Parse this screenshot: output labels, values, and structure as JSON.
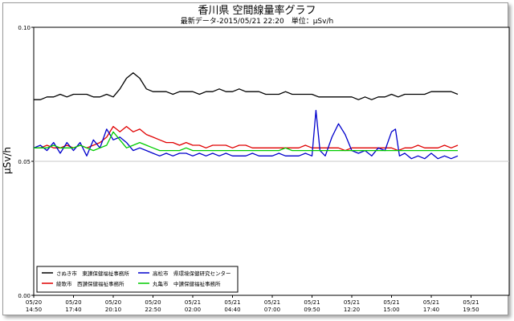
{
  "chart_data": {
    "type": "line",
    "title": "香川県 空間線量率グラフ",
    "subtitle": "最新データ-2015/05/21 22:20　単位：μSv/h",
    "ylabel": "μSv/h",
    "ylim": [
      0.0,
      0.1
    ],
    "yticks": [
      "0.00",
      "0.05",
      "0.10"
    ],
    "grid": true,
    "legend_position": "bottom-left",
    "x_range": [
      0,
      32.0
    ],
    "x_unit_note": "hours",
    "xticks": [
      {
        "x": 0,
        "date": "05/20",
        "time": "14:50"
      },
      {
        "x": 3,
        "date": "05/20",
        "time": "17:40"
      },
      {
        "x": 6,
        "date": "05/20",
        "time": "20:10"
      },
      {
        "x": 9,
        "date": "05/20",
        "time": "22:50"
      },
      {
        "x": 12,
        "date": "05/21",
        "time": "02:00"
      },
      {
        "x": 15,
        "date": "05/21",
        "time": "04:40"
      },
      {
        "x": 18,
        "date": "05/21",
        "time": "07:00"
      },
      {
        "x": 21,
        "date": "05/21",
        "time": "09:50"
      },
      {
        "x": 24,
        "date": "05/21",
        "time": "12:20"
      },
      {
        "x": 27,
        "date": "05/21",
        "time": "15:00"
      },
      {
        "x": 30,
        "date": "05/21",
        "time": "17:40"
      },
      {
        "x": 33,
        "date": "05/21",
        "time": "19:50"
      }
    ],
    "series": [
      {
        "name": "さぬき市　東讃保健福祉事務所",
        "color": "#000000",
        "x": [
          0,
          0.5,
          1,
          1.5,
          2,
          2.5,
          3,
          3.5,
          4,
          4.5,
          5,
          5.5,
          6,
          6.5,
          7,
          7.5,
          8,
          8.5,
          9,
          9.5,
          10,
          10.5,
          11,
          11.5,
          12,
          12.5,
          13,
          13.5,
          14,
          14.5,
          15,
          15.5,
          16,
          16.5,
          17,
          17.5,
          18,
          18.5,
          19,
          19.5,
          20,
          20.5,
          21,
          21.5,
          22,
          22.5,
          23,
          23.5,
          24,
          24.5,
          25,
          25.5,
          26,
          26.5,
          27,
          27.5,
          28,
          28.5,
          29,
          29.5,
          30,
          30.5,
          31,
          31.5,
          32
        ],
        "values": [
          0.073,
          0.073,
          0.074,
          0.074,
          0.075,
          0.074,
          0.075,
          0.075,
          0.075,
          0.074,
          0.074,
          0.075,
          0.074,
          0.077,
          0.081,
          0.083,
          0.081,
          0.077,
          0.076,
          0.076,
          0.076,
          0.075,
          0.076,
          0.076,
          0.076,
          0.075,
          0.076,
          0.076,
          0.077,
          0.076,
          0.076,
          0.077,
          0.076,
          0.076,
          0.076,
          0.075,
          0.075,
          0.075,
          0.076,
          0.075,
          0.075,
          0.075,
          0.075,
          0.074,
          0.074,
          0.074,
          0.074,
          0.074,
          0.074,
          0.073,
          0.074,
          0.073,
          0.074,
          0.074,
          0.075,
          0.074,
          0.075,
          0.075,
          0.075,
          0.075,
          0.076,
          0.076,
          0.076,
          0.076,
          0.075
        ]
      },
      {
        "name": "綾歌市　西讃保健福祉事務所",
        "color": "#e00000",
        "x": [
          0,
          0.5,
          1,
          1.5,
          2,
          2.5,
          3,
          3.5,
          4,
          4.5,
          5,
          5.5,
          6,
          6.5,
          7,
          7.5,
          8,
          8.5,
          9,
          9.5,
          10,
          10.5,
          11,
          11.5,
          12,
          12.5,
          13,
          13.5,
          14,
          14.5,
          15,
          15.5,
          16,
          16.5,
          17,
          17.5,
          18,
          18.5,
          19,
          19.5,
          20,
          20.5,
          21,
          21.5,
          22,
          22.5,
          23,
          23.5,
          24,
          24.5,
          25,
          25.5,
          26,
          26.5,
          27,
          27.5,
          28,
          28.5,
          29,
          29.5,
          30,
          30.5,
          31,
          31.5,
          32
        ],
        "values": [
          0.055,
          0.055,
          0.056,
          0.055,
          0.055,
          0.056,
          0.055,
          0.056,
          0.055,
          0.056,
          0.057,
          0.059,
          0.063,
          0.061,
          0.063,
          0.061,
          0.062,
          0.06,
          0.059,
          0.058,
          0.057,
          0.057,
          0.056,
          0.057,
          0.056,
          0.056,
          0.055,
          0.056,
          0.056,
          0.056,
          0.055,
          0.056,
          0.056,
          0.055,
          0.055,
          0.055,
          0.055,
          0.055,
          0.055,
          0.055,
          0.055,
          0.056,
          0.055,
          0.055,
          0.055,
          0.055,
          0.055,
          0.054,
          0.055,
          0.055,
          0.055,
          0.055,
          0.055,
          0.055,
          0.055,
          0.054,
          0.055,
          0.055,
          0.056,
          0.055,
          0.055,
          0.055,
          0.056,
          0.055,
          0.056
        ]
      },
      {
        "name": "高松市　県環境保健研究センター",
        "color": "#0000cc",
        "x": [
          0,
          0.5,
          1,
          1.5,
          2,
          2.5,
          3,
          3.5,
          4,
          4.5,
          5,
          5.5,
          6,
          6.5,
          7,
          7.5,
          8,
          8.5,
          9,
          9.5,
          10,
          10.5,
          11,
          11.5,
          12,
          12.5,
          13,
          13.5,
          14,
          14.5,
          15,
          15.5,
          16,
          16.5,
          17,
          17.5,
          18,
          18.5,
          19,
          19.5,
          20,
          20.5,
          21,
          21.3,
          21.6,
          22,
          22.5,
          23,
          23.5,
          24,
          24.5,
          25,
          25.5,
          26,
          26.5,
          27,
          27.3,
          27.6,
          28,
          28.5,
          29,
          29.5,
          30,
          30.5,
          31,
          31.5,
          32
        ],
        "values": [
          0.055,
          0.056,
          0.054,
          0.057,
          0.053,
          0.057,
          0.054,
          0.057,
          0.052,
          0.058,
          0.055,
          0.062,
          0.058,
          0.059,
          0.057,
          0.054,
          0.055,
          0.054,
          0.053,
          0.052,
          0.053,
          0.052,
          0.053,
          0.053,
          0.052,
          0.053,
          0.052,
          0.053,
          0.052,
          0.053,
          0.052,
          0.052,
          0.052,
          0.053,
          0.052,
          0.052,
          0.052,
          0.053,
          0.052,
          0.052,
          0.052,
          0.053,
          0.052,
          0.069,
          0.054,
          0.052,
          0.059,
          0.064,
          0.06,
          0.054,
          0.053,
          0.054,
          0.052,
          0.055,
          0.054,
          0.061,
          0.062,
          0.052,
          0.053,
          0.051,
          0.052,
          0.051,
          0.053,
          0.051,
          0.052,
          0.051,
          0.052
        ]
      },
      {
        "name": "丸亀市　中讃保健福祉事務所",
        "color": "#00cc00",
        "x": [
          0,
          0.5,
          1,
          1.5,
          2,
          2.5,
          3,
          3.5,
          4,
          4.5,
          5,
          5.5,
          6,
          6.5,
          7,
          7.5,
          8,
          8.5,
          9,
          9.5,
          10,
          10.5,
          11,
          11.5,
          12,
          12.5,
          13,
          13.5,
          14,
          14.5,
          15,
          15.5,
          16,
          16.5,
          17,
          17.5,
          18,
          18.5,
          19,
          19.5,
          20,
          20.5,
          21,
          21.5,
          22,
          22.5,
          23,
          23.5,
          24,
          24.5,
          25,
          25.5,
          26,
          26.5,
          27,
          27.5,
          28,
          28.5,
          29,
          29.5,
          30,
          30.5,
          31,
          31.5,
          32
        ],
        "values": [
          0.055,
          0.055,
          0.055,
          0.056,
          0.055,
          0.055,
          0.055,
          0.056,
          0.055,
          0.054,
          0.055,
          0.056,
          0.061,
          0.058,
          0.055,
          0.056,
          0.057,
          0.056,
          0.055,
          0.054,
          0.054,
          0.054,
          0.054,
          0.055,
          0.054,
          0.054,
          0.054,
          0.054,
          0.054,
          0.054,
          0.054,
          0.054,
          0.054,
          0.054,
          0.054,
          0.054,
          0.054,
          0.054,
          0.055,
          0.054,
          0.054,
          0.054,
          0.054,
          0.054,
          0.054,
          0.054,
          0.054,
          0.054,
          0.054,
          0.054,
          0.054,
          0.054,
          0.054,
          0.054,
          0.054,
          0.054,
          0.054,
          0.054,
          0.054,
          0.054,
          0.054,
          0.054,
          0.054,
          0.054,
          0.054
        ]
      }
    ]
  }
}
